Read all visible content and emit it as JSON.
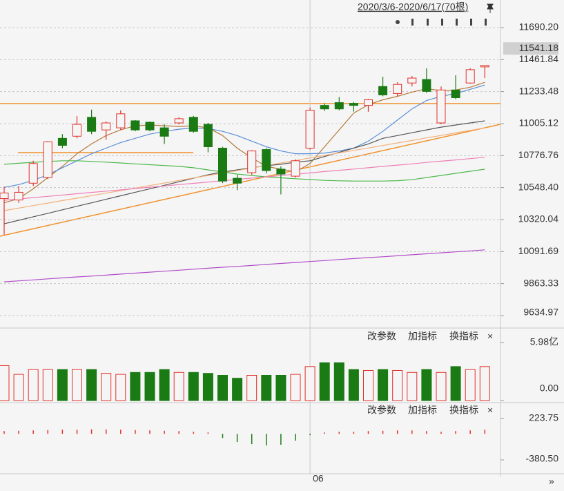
{
  "chart_data": [
    {
      "type": "candlestick",
      "range_label": "2020/3/6-2020/6/17(70根)",
      "categories": [
        null,
        null,
        null,
        null,
        null,
        null,
        null,
        null,
        null,
        null,
        null,
        null,
        null,
        null,
        null,
        null,
        null,
        null,
        null,
        null,
        null,
        "06",
        null,
        null,
        null,
        null,
        null,
        null,
        null,
        null,
        null,
        null,
        null,
        null
      ],
      "open": [
        10470,
        10460,
        10580,
        10620,
        10900,
        10915,
        11050,
        10960,
        10975,
        11025,
        11015,
        10975,
        11010,
        11050,
        11000,
        10830,
        10615,
        10655,
        10820,
        10680,
        10630,
        10830,
        11135,
        11155,
        11150,
        11135,
        11270,
        11220,
        11295,
        11320,
        11010,
        11245,
        11295,
        11410
      ],
      "high": [
        10555,
        10560,
        10740,
        10880,
        10930,
        11060,
        11105,
        11020,
        11100,
        11030,
        11020,
        11000,
        11050,
        11060,
        11010,
        10840,
        10640,
        10815,
        10830,
        10700,
        10750,
        11120,
        11150,
        11195,
        11160,
        11180,
        11340,
        11300,
        11345,
        11400,
        11270,
        11350,
        11400,
        11420
      ],
      "low": [
        10212,
        10440,
        10560,
        10610,
        10830,
        10900,
        10930,
        10890,
        10960,
        10950,
        10950,
        10860,
        11000,
        10940,
        10800,
        10580,
        10530,
        10640,
        10650,
        10500,
        10620,
        10820,
        11095,
        11100,
        11090,
        11090,
        11200,
        11200,
        11270,
        11225,
        11000,
        11180,
        11290,
        11330
      ],
      "close": [
        10510,
        10515,
        10720,
        10875,
        10850,
        11000,
        10950,
        11010,
        11075,
        10960,
        10960,
        10915,
        11040,
        10950,
        10840,
        10595,
        10580,
        10810,
        10670,
        10645,
        10740,
        11100,
        11110,
        11110,
        11135,
        11175,
        11210,
        11285,
        11330,
        11235,
        11245,
        11190,
        11390,
        11420
      ],
      "up_color": "#e0312b",
      "down_color": "#1a7a14",
      "series": [
        {
          "color": "#b5793a",
          "values": [
            10440,
            10470,
            10540,
            10620,
            10700,
            10790,
            10860,
            10920,
            10960,
            10990,
            10995,
            10990,
            10985,
            10990,
            10975,
            10920,
            10830,
            10760,
            10700,
            10680,
            10660,
            10720,
            10840,
            10960,
            11080,
            11140,
            11175,
            11200,
            11230,
            11255,
            11240,
            11245,
            11265,
            11300
          ]
        },
        {
          "color": "#5b8ed6",
          "values": [
            10550,
            10570,
            10600,
            10640,
            10690,
            10740,
            10790,
            10830,
            10870,
            10900,
            10930,
            10950,
            10965,
            10975,
            10970,
            10950,
            10920,
            10880,
            10840,
            10810,
            10790,
            10790,
            10795,
            10810,
            10830,
            10880,
            10950,
            11030,
            11110,
            11170,
            11200,
            11220,
            11250,
            11280
          ]
        },
        {
          "color": "#555555",
          "values": [
            10290,
            10315,
            10340,
            10365,
            10390,
            10415,
            10440,
            10465,
            10490,
            10515,
            10540,
            10565,
            10590,
            10615,
            10640,
            10660,
            10675,
            10690,
            10705,
            10715,
            10730,
            10740,
            10770,
            10800,
            10830,
            10860,
            10900,
            10920,
            10940,
            10960,
            10980,
            10995,
            11010,
            11025
          ]
        },
        {
          "color": "#f2b27a",
          "values": [
            10384,
            10402,
            10420,
            10438,
            10456,
            10473,
            10491,
            10509,
            10527,
            10545,
            10563,
            10581,
            10599,
            10617,
            10635,
            10652,
            10670,
            10688,
            10706,
            10724,
            10742,
            10760,
            10778,
            10796,
            10814,
            10831,
            10849,
            10867,
            10885,
            10903,
            10921,
            10939,
            10957,
            10975
          ]
        },
        {
          "color": "#4cb84c",
          "values": [
            10715,
            10722,
            10729,
            10735,
            10740,
            10740,
            10735,
            10730,
            10724,
            10718,
            10712,
            10706,
            10700,
            10690,
            10675,
            10660,
            10645,
            10635,
            10625,
            10618,
            10612,
            10606,
            10600,
            10597,
            10595,
            10595,
            10595,
            10598,
            10605,
            10620,
            10635,
            10650,
            10665,
            10680
          ]
        },
        {
          "color": "#ef7fb8",
          "values": [
            10458,
            10467,
            10477,
            10486,
            10495,
            10505,
            10514,
            10523,
            10532,
            10542,
            10551,
            10560,
            10570,
            10579,
            10588,
            10597,
            10607,
            10616,
            10625,
            10635,
            10644,
            10653,
            10663,
            10672,
            10681,
            10690,
            10700,
            10709,
            10718,
            10728,
            10737,
            10746,
            10755,
            10765
          ]
        },
        {
          "color": "#b04cc8",
          "values": [
            9876,
            9883,
            9890,
            9897,
            9904,
            9911,
            9917,
            9924,
            9931,
            9938,
            9945,
            9952,
            9959,
            9966,
            9973,
            9980,
            9986,
            9993,
            10000,
            10007,
            10014,
            10021,
            10028,
            10035,
            10042,
            10049,
            10055,
            10062,
            10069,
            10076,
            10083,
            10090,
            10097,
            10104
          ]
        }
      ],
      "ylim": [
        9556.1,
        11887.3
      ],
      "yticks": [
        {
          "value": 11690.2,
          "label": "11690.20"
        },
        11461.84,
        11233.48,
        11005.12,
        10776.76,
        {
          "value": 10548.4,
          "label": "10548.40"
        },
        10320.04,
        10091.69,
        9863.33,
        9634.97
      ],
      "last_price": 11541.18,
      "grid": true
    },
    {
      "type": "bar",
      "toolbar": [
        "改参数",
        "加指标",
        "换指标",
        "×"
      ],
      "values": [
        3.6,
        2.7,
        3.2,
        3.2,
        3.2,
        3.2,
        3.2,
        2.8,
        2.7,
        2.9,
        2.9,
        3.2,
        2.9,
        2.9,
        2.8,
        2.6,
        2.3,
        2.6,
        2.6,
        2.6,
        2.7,
        3.5,
        3.9,
        3.9,
        3.2,
        3.1,
        3.2,
        3.1,
        2.9,
        3.2,
        2.9,
        3.5,
        3.2,
        3.5
      ],
      "ylim": [
        -0.21,
        7.26
      ],
      "yticks": [
        {
          "value": 5.98,
          "label": "5.98亿"
        },
        {
          "value": 0,
          "label": "0.00"
        }
      ]
    },
    {
      "type": "macd",
      "toolbar": [
        "改参数",
        "加指标",
        "换指标",
        "×"
      ],
      "values": [
        40,
        45,
        50,
        55,
        60,
        60,
        65,
        65,
        60,
        55,
        50,
        45,
        40,
        30,
        20,
        -60,
        -120,
        -150,
        -170,
        -160,
        -100,
        -20,
        20,
        30,
        30,
        40,
        45,
        50,
        50,
        40,
        30,
        40,
        50,
        60
      ],
      "ylim": [
        -571.8,
        435.2
      ],
      "yticks": [
        223.75,
        {
          "value": -380.5,
          "label": "-380.50"
        }
      ]
    }
  ]
}
